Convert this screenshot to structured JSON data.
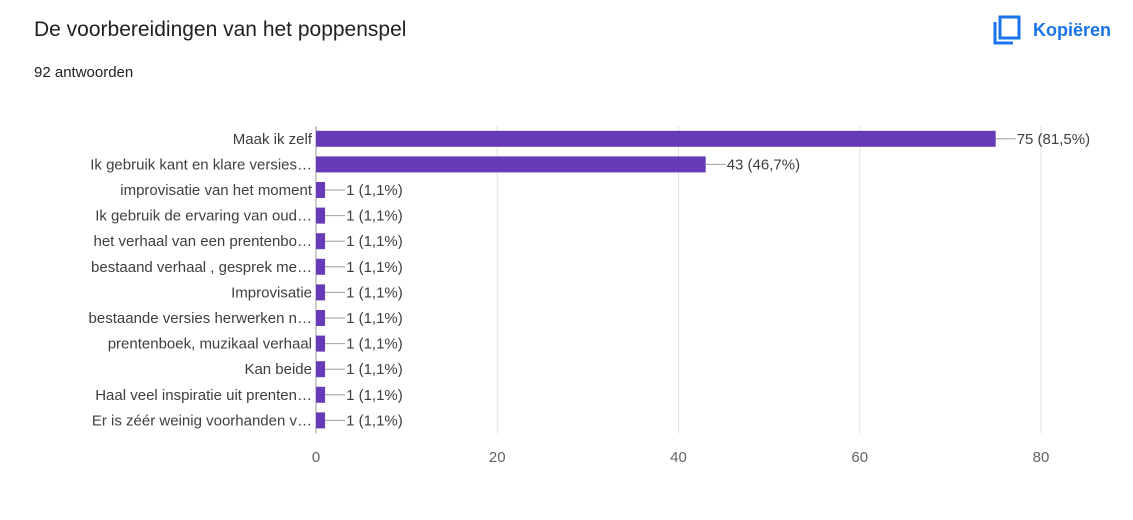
{
  "header": {
    "title": "De voorbereidingen van het poppenspel",
    "response_count": "92 antwoorden",
    "copy_label": "Kopiëren"
  },
  "colors": {
    "bar": "#673ab7",
    "accent": "#1a73e8"
  },
  "icons": {
    "copy": "copy-icon"
  },
  "chart_data": {
    "type": "bar",
    "orientation": "horizontal",
    "categories": [
      "Maak ik zelf",
      "Ik gebruik kant en klare versies…",
      "improvisatie van het moment",
      "Ik gebruik de ervaring van oud…",
      "het verhaal van een prentenbo…",
      "bestaand verhaal , gesprek me…",
      "Improvisatie",
      "bestaande versies herwerken n…",
      "prentenboek, muzikaal verhaal",
      "Kan beide",
      "Haal veel inspiratie uit prenten…",
      "Er is zéér weinig voorhanden v…"
    ],
    "values": [
      75,
      43,
      1,
      1,
      1,
      1,
      1,
      1,
      1,
      1,
      1,
      1
    ],
    "value_labels": [
      "75 (81,5%)",
      "43 (46,7%)",
      "1 (1,1%)",
      "1 (1,1%)",
      "1 (1,1%)",
      "1 (1,1%)",
      "1 (1,1%)",
      "1 (1,1%)",
      "1 (1,1%)",
      "1 (1,1%)",
      "1 (1,1%)",
      "1 (1,1%)"
    ],
    "xlim": [
      0,
      80
    ],
    "xticks": [
      "0",
      "20",
      "40",
      "60",
      "80"
    ],
    "grid": true
  }
}
